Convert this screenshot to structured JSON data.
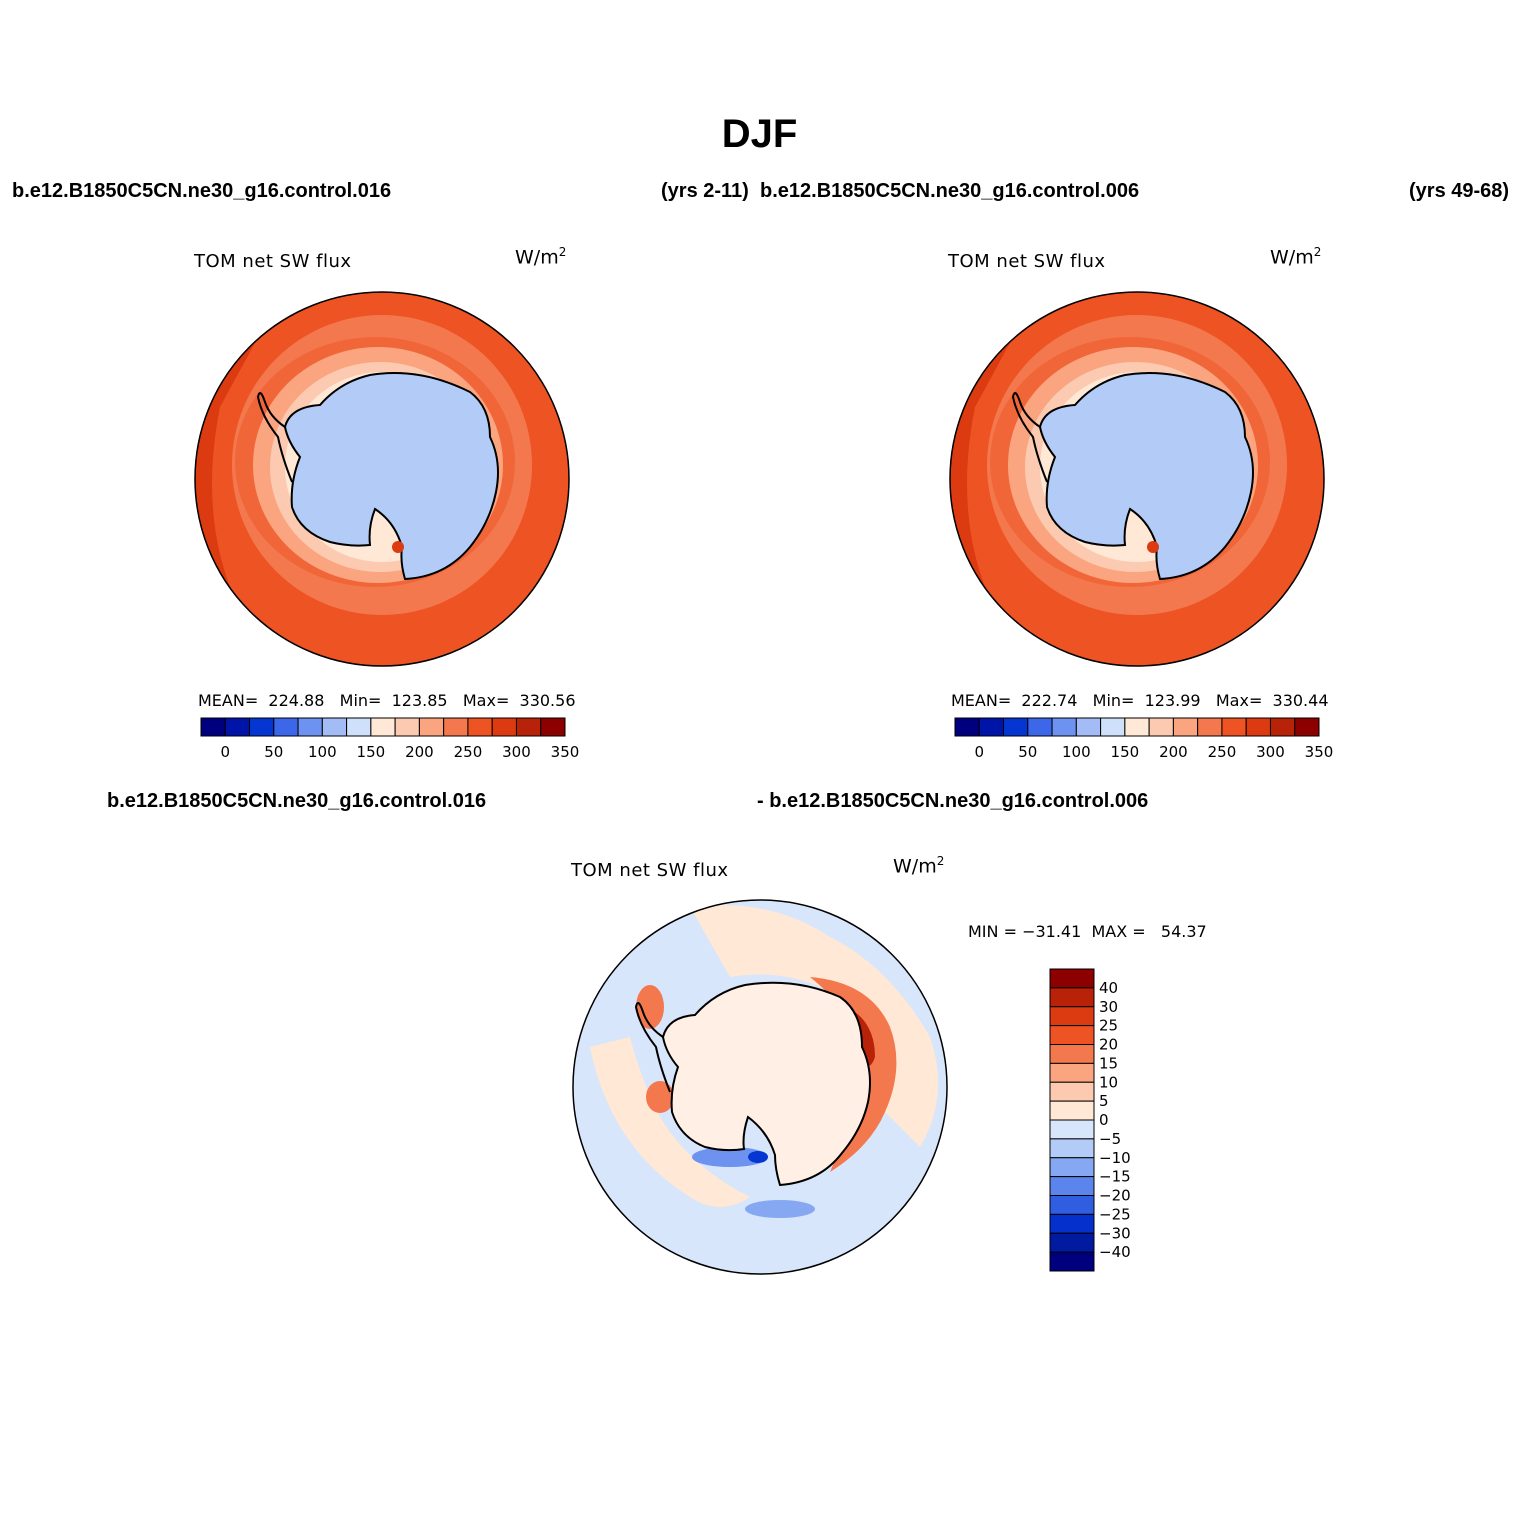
{
  "title": "DJF",
  "header": {
    "case1": "b.e12.B1850C5CN.ne30_g16.control.016",
    "years1": "(yrs 2-11)",
    "case2": "b.e12.B1850C5CN.ne30_g16.control.006",
    "years2": "(yrs 49-68)"
  },
  "panels": [
    {
      "variable": "TOM  net  SW  flux",
      "units_base": "W/m",
      "units_exp": "2",
      "stats": "MEAN=  224.88   Min=  123.85   Max=  330.56"
    },
    {
      "variable": "TOM  net  SW  flux",
      "units_base": "W/m",
      "units_exp": "2",
      "stats": "MEAN=  222.74   Min=  123.99   Max=  330.44"
    }
  ],
  "diff": {
    "case_a": "b.e12.B1850C5CN.ne30_g16.control.016",
    "case_b": "- b.e12.B1850C5CN.ne30_g16.control.006",
    "variable": "TOM  net  SW  flux",
    "units_base": "W/m",
    "units_exp": "2",
    "stats": "MIN = −31.41  MAX =   54.37"
  },
  "colorbar_top": {
    "labels": [
      "0",
      "50",
      "100",
      "150",
      "200",
      "250",
      "300",
      "350"
    ],
    "colors": [
      "#00007f",
      "#0014a8",
      "#0536d2",
      "#3b67e8",
      "#6e92f0",
      "#a4bcf5",
      "#cfe0fa",
      "#ffe8d5",
      "#fccab0",
      "#faa57f",
      "#f4784e",
      "#ee5323",
      "#dc3a10",
      "#b82208",
      "#8c0000"
    ]
  },
  "colorbar_diff": {
    "labels": [
      "40",
      "30",
      "25",
      "20",
      "15",
      "10",
      "5",
      "0",
      "−5",
      "−10",
      "−15",
      "−20",
      "−25",
      "−30",
      "−40"
    ],
    "colors": [
      "#8c0000",
      "#b82208",
      "#dc3a10",
      "#ee5323",
      "#f4784e",
      "#faa57f",
      "#fccab0",
      "#ffe8d5",
      "#d7e6fa",
      "#b3cbf7",
      "#86a8f2",
      "#5b84ec",
      "#2f5ee0",
      "#0530cc",
      "#001ba0",
      "#00007f"
    ]
  }
}
